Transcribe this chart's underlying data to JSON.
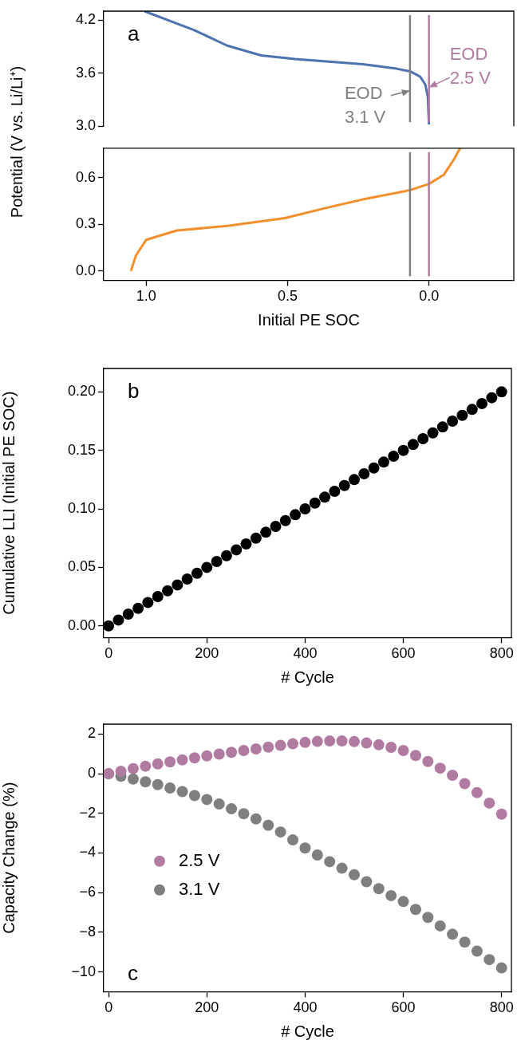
{
  "chart_data": [
    {
      "type": "line",
      "title": "a",
      "ylabel": "Potential (V vs. Li/Li⁺)",
      "x": [
        1.006,
        0.833,
        0.713,
        0.593,
        0.474,
        0.354,
        0.234,
        0.115,
        0.067,
        0.031,
        0.013,
        0.004,
        0.0
      ],
      "series": [
        {
          "color": "#4c72b0",
          "values": [
            4.3,
            4.09,
            3.91,
            3.8,
            3.76,
            3.73,
            3.7,
            3.65,
            3.62,
            3.56,
            3.47,
            3.33,
            3.02
          ]
        }
      ],
      "xlim": [
        1.15,
        -0.3
      ],
      "ylim": [
        3.0,
        4.3
      ],
      "yticks": [
        {
          "value": 3.0,
          "label": "3.0"
        },
        3.6,
        4.2
      ],
      "tick_labels": "y",
      "grid": false,
      "ref_lines": [
        {
          "axis": "x",
          "value": 0.067,
          "color": "#808080"
        },
        {
          "axis": "x",
          "value": 0,
          "color": "#b07aa1"
        }
      ],
      "annotations": [
        {
          "text": "EOD\n3.1 V",
          "x": 0.067,
          "y": 3.4
        },
        {
          "text": "EOD\n2.5 V",
          "x": 0,
          "y": 3.44
        }
      ]
    },
    {
      "type": "line",
      "xlabel": "Initial PE SOC",
      "x": [
        1.054,
        1.036,
        1.0,
        0.892,
        0.713,
        0.51,
        0.354,
        0.234,
        0.067,
        0.0,
        -0.053,
        -0.089,
        -0.11
      ],
      "series": [
        {
          "color": "#f28e2b",
          "values": [
            0.0,
            0.1,
            0.2,
            0.26,
            0.29,
            0.34,
            0.41,
            0.46,
            0.52,
            0.56,
            0.62,
            0.72,
            0.79
          ]
        }
      ],
      "xlim": [
        1.15,
        -0.3
      ],
      "xticks": [
        {
          "value": 1.0,
          "label": "1.0"
        },
        0.5,
        {
          "value": 0.0,
          "label": "0.0"
        }
      ],
      "ylim": [
        -0.06,
        0.79
      ],
      "yticks": [
        {
          "value": 0,
          "label": "0.0"
        },
        0.3,
        0.6
      ],
      "grid": false,
      "ref_lines": [
        {
          "axis": "x",
          "value": 0.067,
          "color": "#808080"
        },
        {
          "axis": "x",
          "value": 0,
          "color": "#b07aa1"
        }
      ]
    },
    {
      "type": "scatter",
      "title": "b",
      "xlabel": "# Cycle",
      "ylabel": "Cumulative LLI (Initial PE SOC)",
      "marker": "circle",
      "x": [
        0,
        20,
        40,
        60,
        80,
        100,
        120,
        140,
        160,
        180,
        200,
        220,
        240,
        260,
        280,
        300,
        320,
        340,
        360,
        380,
        400,
        420,
        440,
        460,
        480,
        500,
        520,
        540,
        560,
        580,
        600,
        620,
        640,
        660,
        680,
        700,
        720,
        740,
        760,
        780,
        800
      ],
      "series": [
        {
          "color": "#000000",
          "values": [
            0,
            0.005,
            0.01,
            0.015,
            0.02,
            0.025,
            0.03,
            0.035,
            0.04,
            0.045,
            0.05,
            0.055,
            0.06,
            0.065,
            0.07,
            0.075,
            0.08,
            0.085,
            0.09,
            0.095,
            0.1,
            0.105,
            0.11,
            0.115,
            0.12,
            0.125,
            0.13,
            0.135,
            0.14,
            0.145,
            0.15,
            0.155,
            0.16,
            0.165,
            0.17,
            0.175,
            0.18,
            0.185,
            0.19,
            0.195,
            0.2
          ]
        }
      ],
      "xlim": [
        -10,
        820
      ],
      "xticks": [
        0,
        200,
        400,
        600,
        800
      ],
      "ylim": [
        -0.01,
        0.22
      ],
      "yticks": [
        {
          "value": 0,
          "label": "0.00"
        },
        {
          "value": 0.05,
          "label": "0.05"
        },
        {
          "value": 0.1,
          "label": "0.10"
        },
        {
          "value": 0.15,
          "label": "0.15"
        },
        {
          "value": 0.2,
          "label": "0.20"
        }
      ],
      "grid": false
    },
    {
      "type": "scatter",
      "title": "c",
      "xlabel": "# Cycle",
      "ylabel": "Capacity Change (%)",
      "marker": "circle",
      "legend": "center left",
      "x": [
        0,
        25,
        50,
        75,
        100,
        125,
        150,
        175,
        200,
        225,
        250,
        275,
        300,
        325,
        350,
        375,
        400,
        425,
        450,
        475,
        500,
        525,
        550,
        575,
        600,
        625,
        650,
        675,
        700,
        725,
        750,
        775,
        800
      ],
      "series": [
        {
          "name": "2.5 V",
          "color": "#b07aa1",
          "values": [
            0,
            0.13,
            0.26,
            0.38,
            0.5,
            0.6,
            0.7,
            0.8,
            0.9,
            0.99,
            1.08,
            1.17,
            1.25,
            1.34,
            1.43,
            1.51,
            1.58,
            1.63,
            1.65,
            1.65,
            1.62,
            1.55,
            1.46,
            1.33,
            1.17,
            0.92,
            0.62,
            0.28,
            -0.08,
            -0.5,
            -0.95,
            -1.48,
            -2.04
          ]
        },
        {
          "name": "3.1 V",
          "color": "#7f7f7f",
          "values": [
            0,
            -0.13,
            -0.27,
            -0.41,
            -0.55,
            -0.72,
            -0.9,
            -1.1,
            -1.3,
            -1.53,
            -1.77,
            -2.02,
            -2.28,
            -2.6,
            -2.94,
            -3.34,
            -3.75,
            -4.1,
            -4.44,
            -4.77,
            -5.1,
            -5.45,
            -5.8,
            -6.15,
            -6.45,
            -6.85,
            -7.25,
            -7.68,
            -8.1,
            -8.5,
            -8.95,
            -9.38,
            -9.8
          ]
        }
      ],
      "xlim": [
        -10,
        820
      ],
      "xticks": [
        0,
        200,
        400,
        600,
        800
      ],
      "ylim": [
        -11,
        2.5
      ],
      "yticks": [
        {
          "value": -10,
          "label": "−10"
        },
        {
          "value": -8,
          "label": "−8"
        },
        {
          "value": -6,
          "label": "−6"
        },
        {
          "value": -4,
          "label": "−4"
        },
        {
          "value": -2,
          "label": "−2"
        },
        0,
        2
      ],
      "grid": false
    }
  ]
}
